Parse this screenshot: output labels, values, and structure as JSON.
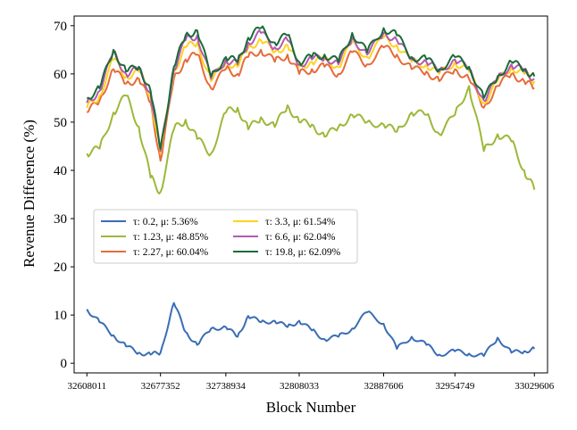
{
  "chart_data": {
    "type": "line",
    "title": "",
    "xlabel": "Block Number",
    "ylabel": "Revenue Difference (%)",
    "xlim": [
      32596000,
      33042000
    ],
    "ylim": [
      -2,
      72
    ],
    "x_ticks": [
      "32608011",
      "32677352",
      "32738934",
      "32808033",
      "32887606",
      "32954749",
      "33029606"
    ],
    "y_ticks": [
      0,
      10,
      20,
      30,
      40,
      50,
      60,
      70
    ],
    "grid": false,
    "legend_position": "center-left",
    "x": [
      32608011,
      32620000,
      32633000,
      32645000,
      32657000,
      32668000,
      32677352,
      32690000,
      32701000,
      32712000,
      32725000,
      32738934,
      32750000,
      32760000,
      32772000,
      32785000,
      32797000,
      32808033,
      32820000,
      32832000,
      32845000,
      32858000,
      32872000,
      32887606,
      32900000,
      32914000,
      32928000,
      32940000,
      32954749,
      32968000,
      32982000,
      32995000,
      33008000,
      33020000,
      33029606
    ],
    "series": [
      {
        "name": "τ: 0.2, μ: 5.36%",
        "color": "#3a6db5",
        "values": [
          11.2,
          8.5,
          5.8,
          3.5,
          2.2,
          1.8,
          2.2,
          12.5,
          6.5,
          3.8,
          7.2,
          7.5,
          5.5,
          9.8,
          8.5,
          8.8,
          7.5,
          8.8,
          6.8,
          5.0,
          5.5,
          7.2,
          10.6,
          8.2,
          3.0,
          5.5,
          3.8,
          1.8,
          2.5,
          2.0,
          1.5,
          5.3,
          2.2,
          2.5,
          3.0
        ]
      },
      {
        "name": "τ: 1.23, μ: 48.85%",
        "color": "#9cb83a",
        "values": [
          43.5,
          44.5,
          52.0,
          55.5,
          49.0,
          38.5,
          35.5,
          48.5,
          50.5,
          46.5,
          43.5,
          52.0,
          53.0,
          48.5,
          51.0,
          49.0,
          53.5,
          50.0,
          49.5,
          47.0,
          49.0,
          51.5,
          50.0,
          49.5,
          48.0,
          52.0,
          51.5,
          47.5,
          51.5,
          57.5,
          44.0,
          47.5,
          46.0,
          40.0,
          36.0
        ]
      },
      {
        "name": "τ: 2.27, μ: 60.04%",
        "color": "#e66b3a",
        "values": [
          52.0,
          54.5,
          61.0,
          58.0,
          59.0,
          54.0,
          42.0,
          59.0,
          63.0,
          64.0,
          57.0,
          61.0,
          60.0,
          63.5,
          65.0,
          62.5,
          64.0,
          60.0,
          61.0,
          61.5,
          60.0,
          64.5,
          62.0,
          65.5,
          64.0,
          61.0,
          60.5,
          58.5,
          61.0,
          59.0,
          53.0,
          57.5,
          60.0,
          58.5,
          57.0
        ]
      },
      {
        "name": "τ: 3.3, μ: 61.54%",
        "color": "#ffd21e",
        "values": [
          53.0,
          55.5,
          63.0,
          59.5,
          60.5,
          55.5,
          43.5,
          60.5,
          65.5,
          66.5,
          58.5,
          62.5,
          61.5,
          65.5,
          67.0,
          64.5,
          66.0,
          61.5,
          62.5,
          63.0,
          61.5,
          66.5,
          63.5,
          67.5,
          66.0,
          62.5,
          62.0,
          60.0,
          62.5,
          60.5,
          54.0,
          58.5,
          61.5,
          60.0,
          58.5
        ]
      },
      {
        "name": "τ: 6.6, μ: 62.04%",
        "color": "#b35ab3",
        "values": [
          54.0,
          56.5,
          64.5,
          60.0,
          61.0,
          56.0,
          44.0,
          61.0,
          67.0,
          68.0,
          59.0,
          63.0,
          62.0,
          66.5,
          68.5,
          65.5,
          67.0,
          62.0,
          63.0,
          63.5,
          62.0,
          67.5,
          64.0,
          68.5,
          67.0,
          63.0,
          62.5,
          60.5,
          63.0,
          61.0,
          54.5,
          59.0,
          62.0,
          60.5,
          59.0
        ]
      },
      {
        "name": "τ: 19.8, μ: 62.09%",
        "color": "#1b6b38",
        "values": [
          55.0,
          57.0,
          65.0,
          60.5,
          61.5,
          56.5,
          44.5,
          61.5,
          68.0,
          69.0,
          59.5,
          63.5,
          62.5,
          67.5,
          69.5,
          66.5,
          68.0,
          62.5,
          63.5,
          64.0,
          62.5,
          68.5,
          64.5,
          69.5,
          68.0,
          63.5,
          63.0,
          61.0,
          63.5,
          61.5,
          55.0,
          59.5,
          62.5,
          61.0,
          59.5
        ]
      }
    ]
  }
}
